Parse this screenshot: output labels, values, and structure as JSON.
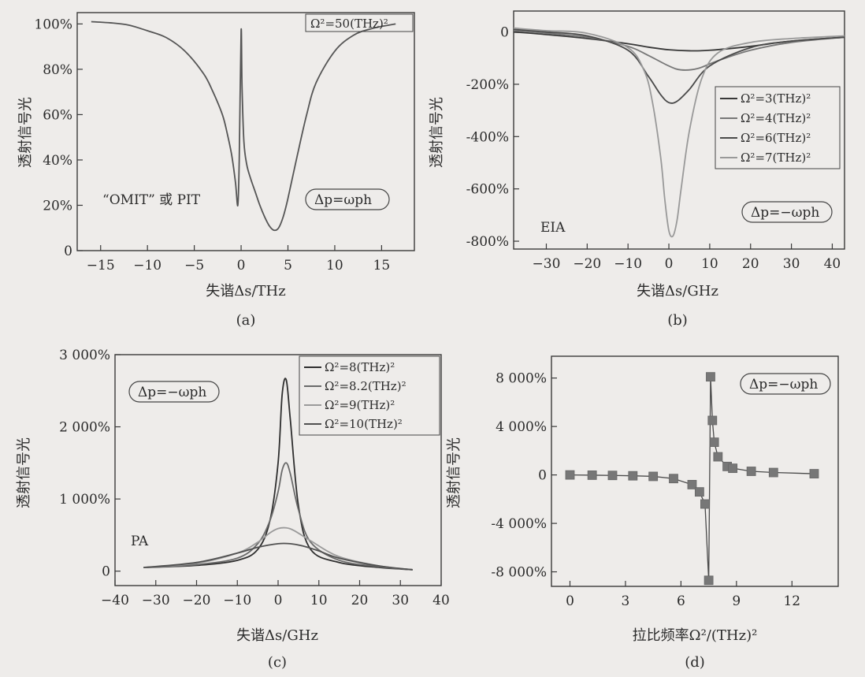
{
  "chart_data": [
    {
      "id": "a",
      "type": "line",
      "caption": "(a)",
      "xlabel": "失谐Δs/THz",
      "ylabel": "透射信号光",
      "xlim": [
        -17.5,
        18.5
      ],
      "ylim": [
        0,
        105
      ],
      "xticks": [
        -15,
        -10,
        -5,
        0,
        5,
        10,
        15
      ],
      "yticks": [
        0,
        20,
        40,
        60,
        80,
        100
      ],
      "ytick_labels": [
        "0",
        "20%",
        "40%",
        "60%",
        "80%",
        "100%"
      ],
      "legend_position": "top-right",
      "annotations": [
        "“OMIT” 或 PIT",
        "Δp=ωph"
      ],
      "series": [
        {
          "name": "Ω²=50(THz)²",
          "color": "#555555",
          "x": [
            -16,
            -14,
            -12,
            -10,
            -8,
            -6,
            -4,
            -3,
            -2,
            -1.5,
            -1,
            -0.6,
            -0.35,
            -0.2,
            0,
            0.1,
            0.3,
            0.6,
            1,
            1.5,
            2,
            2.5,
            3,
            3.5,
            4,
            4.5,
            5,
            6,
            7,
            8,
            10,
            12,
            14,
            16.5
          ],
          "y": [
            101,
            100.5,
            99.5,
            97,
            94,
            88,
            78,
            70,
            60,
            52,
            42,
            30,
            20,
            40,
            97,
            72,
            48,
            38,
            32,
            26,
            20,
            15,
            11,
            9,
            10,
            15,
            23,
            42,
            60,
            74,
            88,
            95,
            98,
            100
          ]
        }
      ]
    },
    {
      "id": "b",
      "type": "line",
      "caption": "(b)",
      "xlabel": "失谐Δs/GHz",
      "ylabel": "透射信号光",
      "xlim": [
        -38,
        43
      ],
      "ylim": [
        -830,
        80
      ],
      "xticks": [
        -30,
        -20,
        -10,
        0,
        10,
        20,
        30,
        40
      ],
      "yticks": [
        0,
        -200,
        -400,
        -600,
        -800
      ],
      "ytick_labels": [
        "0",
        "-200%",
        "-400%",
        "-600%",
        "-800%"
      ],
      "legend_position": "right",
      "annotations": [
        "EIA",
        "Δp=−ωph"
      ],
      "series": [
        {
          "name": "Ω²=3(THz)²",
          "color": "#383838",
          "x": [
            -38,
            -30,
            -20,
            -10,
            -5,
            0,
            5,
            10,
            20,
            30,
            43
          ],
          "y": [
            0,
            -10,
            -25,
            -45,
            -58,
            -68,
            -72,
            -70,
            -55,
            -35,
            -20
          ]
        },
        {
          "name": "Ω²=4(THz)²",
          "color": "#777777",
          "x": [
            -38,
            -30,
            -20,
            -10,
            -5,
            0,
            3,
            7,
            12,
            20,
            30,
            43
          ],
          "y": [
            5,
            -5,
            -20,
            -55,
            -90,
            -130,
            -145,
            -140,
            -110,
            -70,
            -40,
            -20
          ]
        },
        {
          "name": "Ω²=6(THz)²",
          "color": "#4a4a4a",
          "x": [
            -38,
            -30,
            -20,
            -10,
            -5,
            -2,
            0,
            2,
            5,
            10,
            20,
            30,
            43
          ],
          "y": [
            10,
            0,
            -15,
            -70,
            -170,
            -240,
            -270,
            -265,
            -220,
            -130,
            -60,
            -35,
            -20
          ]
        },
        {
          "name": "Ω²=7(THz)²",
          "color": "#999999",
          "x": [
            -38,
            -30,
            -20,
            -10,
            -6,
            -4,
            -2,
            -1,
            0,
            1,
            2,
            3,
            5,
            8,
            12,
            20,
            30,
            43
          ],
          "y": [
            15,
            5,
            -5,
            -60,
            -150,
            -270,
            -480,
            -640,
            -760,
            -780,
            -720,
            -600,
            -380,
            -180,
            -80,
            -40,
            -25,
            -15
          ]
        }
      ]
    },
    {
      "id": "c",
      "type": "line",
      "caption": "(c)",
      "xlabel": "失谐Δs/GHz",
      "ylabel": "透射信号光",
      "xlim": [
        -40,
        40
      ],
      "ylim": [
        -200,
        3000
      ],
      "xticks": [
        -40,
        -30,
        -20,
        -10,
        0,
        10,
        20,
        30,
        40
      ],
      "yticks": [
        0,
        1000,
        2000,
        3000
      ],
      "ytick_labels": [
        "0",
        "1 000%",
        "2 000%",
        "3 000%"
      ],
      "legend_position": "top-right",
      "annotations": [
        "PA",
        "Δp=−ωph"
      ],
      "series": [
        {
          "name": "Ω²=8(THz)²",
          "color": "#2e2e2e",
          "x": [
            -33,
            -20,
            -10,
            -5,
            -2,
            0,
            1,
            2,
            3,
            5,
            8,
            15,
            25,
            33
          ],
          "y": [
            50,
            80,
            150,
            300,
            700,
            1500,
            2450,
            2650,
            2100,
            900,
            300,
            120,
            50,
            20
          ]
        },
        {
          "name": "Ω²=8.2(THz)²",
          "color": "#6a6a6a",
          "x": [
            -33,
            -20,
            -10,
            -5,
            -2,
            0,
            1,
            2,
            3,
            5,
            8,
            15,
            25,
            33
          ],
          "y": [
            50,
            90,
            180,
            380,
            700,
            1100,
            1400,
            1500,
            1350,
            850,
            400,
            150,
            60,
            20
          ]
        },
        {
          "name": "Ω²=9(THz)²",
          "color": "#9a9a9a",
          "x": [
            -33,
            -20,
            -10,
            -5,
            -2,
            0,
            2,
            4,
            8,
            15,
            25,
            33
          ],
          "y": [
            50,
            110,
            250,
            400,
            530,
            590,
            600,
            560,
            420,
            200,
            70,
            20
          ]
        },
        {
          "name": "Ω²=10(THz)²",
          "color": "#505050",
          "x": [
            -33,
            -20,
            -10,
            -5,
            0,
            3,
            6,
            10,
            15,
            25,
            33
          ],
          "y": [
            50,
            120,
            250,
            330,
            380,
            380,
            350,
            280,
            180,
            70,
            20
          ]
        }
      ]
    },
    {
      "id": "d",
      "type": "scatter",
      "caption": "(d)",
      "xlabel": "拉比频率Ω²/(THz)²",
      "ylabel": "透射信号光",
      "xlim": [
        -1,
        14.5
      ],
      "ylim": [
        -9200,
        9800
      ],
      "xticks": [
        0,
        3,
        6,
        9,
        12
      ],
      "yticks": [
        -8000,
        -4000,
        0,
        4000,
        8000
      ],
      "ytick_labels": [
        "-8 000%",
        "-4 000%",
        "0",
        "4 000%",
        "8 000%"
      ],
      "annotations": [
        "Δp=−ωph"
      ],
      "series": [
        {
          "name": "",
          "color": "#777777",
          "x": [
            0,
            1.2,
            2.3,
            3.4,
            4.5,
            5.6,
            6.6,
            7.0,
            7.3,
            7.5,
            7.6,
            7.7,
            7.8,
            8.0,
            8.5,
            8.8,
            9.8,
            11.0,
            13.2
          ],
          "y": [
            0,
            -20,
            -40,
            -70,
            -120,
            -300,
            -800,
            -1400,
            -2400,
            -8700,
            8100,
            4500,
            2700,
            1500,
            700,
            550,
            300,
            200,
            100
          ]
        }
      ]
    }
  ]
}
